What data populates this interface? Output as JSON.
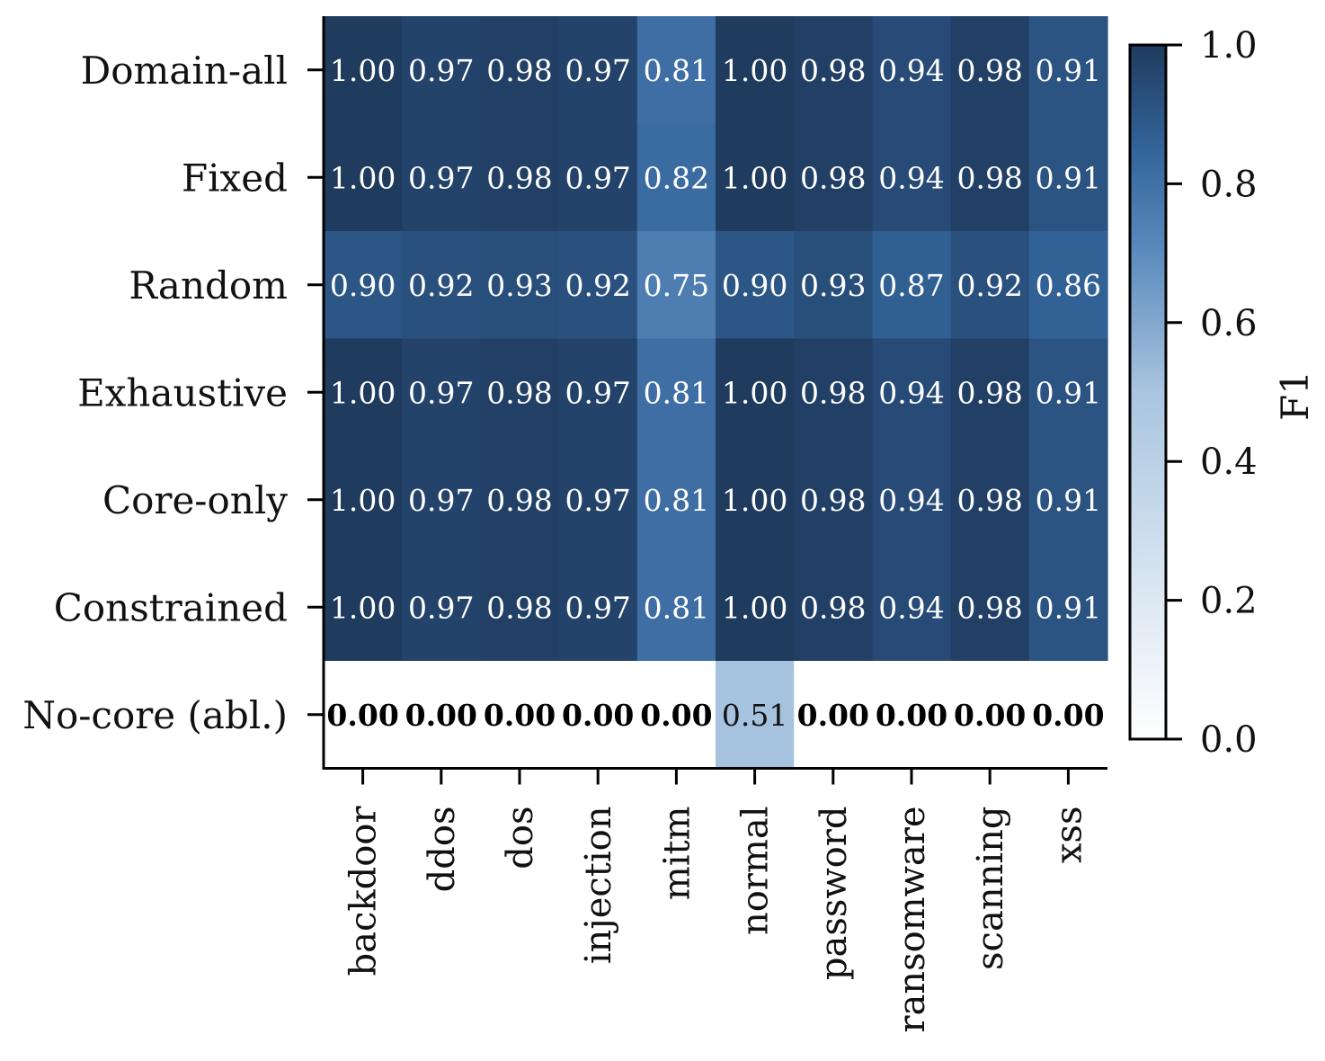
{
  "chart_data": {
    "type": "heatmap",
    "rows": [
      "Domain-all",
      "Fixed",
      "Random",
      "Exhaustive",
      "Core-only",
      "Constrained",
      "No-core (abl.)"
    ],
    "columns": [
      "backdoor",
      "ddos",
      "dos",
      "injection",
      "mitm",
      "normal",
      "password",
      "ransomware",
      "scanning",
      "xss"
    ],
    "values": [
      [
        1.0,
        0.97,
        0.98,
        0.97,
        0.81,
        1.0,
        0.98,
        0.94,
        0.98,
        0.91
      ],
      [
        1.0,
        0.97,
        0.98,
        0.97,
        0.82,
        1.0,
        0.98,
        0.94,
        0.98,
        0.91
      ],
      [
        0.9,
        0.92,
        0.93,
        0.92,
        0.75,
        0.9,
        0.93,
        0.87,
        0.92,
        0.86
      ],
      [
        1.0,
        0.97,
        0.98,
        0.97,
        0.81,
        1.0,
        0.98,
        0.94,
        0.98,
        0.91
      ],
      [
        1.0,
        0.97,
        0.98,
        0.97,
        0.81,
        1.0,
        0.98,
        0.94,
        0.98,
        0.91
      ],
      [
        1.0,
        0.97,
        0.98,
        0.97,
        0.81,
        1.0,
        0.98,
        0.94,
        0.98,
        0.91
      ],
      [
        0.0,
        0.0,
        0.0,
        0.0,
        0.0,
        0.51,
        0.0,
        0.0,
        0.0,
        0.0
      ]
    ],
    "labels": [
      [
        "1.00",
        "0.97",
        "0.98",
        "0.97",
        "0.81",
        "1.00",
        "0.98",
        "0.94",
        "0.98",
        "0.91"
      ],
      [
        "1.00",
        "0.97",
        "0.98",
        "0.97",
        "0.82",
        "1.00",
        "0.98",
        "0.94",
        "0.98",
        "0.91"
      ],
      [
        "0.90",
        "0.92",
        "0.93",
        "0.92",
        "0.75",
        "0.90",
        "0.93",
        "0.87",
        "0.92",
        "0.86"
      ],
      [
        "1.00",
        "0.97",
        "0.98",
        "0.97",
        "0.81",
        "1.00",
        "0.98",
        "0.94",
        "0.98",
        "0.91"
      ],
      [
        "1.00",
        "0.97",
        "0.98",
        "0.97",
        "0.81",
        "1.00",
        "0.98",
        "0.94",
        "0.98",
        "0.91"
      ],
      [
        "1.00",
        "0.97",
        "0.98",
        "0.97",
        "0.81",
        "1.00",
        "0.98",
        "0.94",
        "0.98",
        "0.91"
      ],
      [
        "0.00",
        "0.00",
        "0.00",
        "0.00",
        "0.00",
        "0.51",
        "0.00",
        "0.00",
        "0.00",
        "0.00"
      ]
    ],
    "bold_zero_labels": true,
    "colorbar": {
      "label": "F1",
      "range": [
        0.0,
        1.0
      ],
      "ticks": [
        "0.0",
        "0.2",
        "0.4",
        "0.6",
        "0.8",
        "1.0"
      ],
      "colors": {
        "low": "#ffffff",
        "high": "#1f3b5e"
      }
    },
    "grid": false
  }
}
